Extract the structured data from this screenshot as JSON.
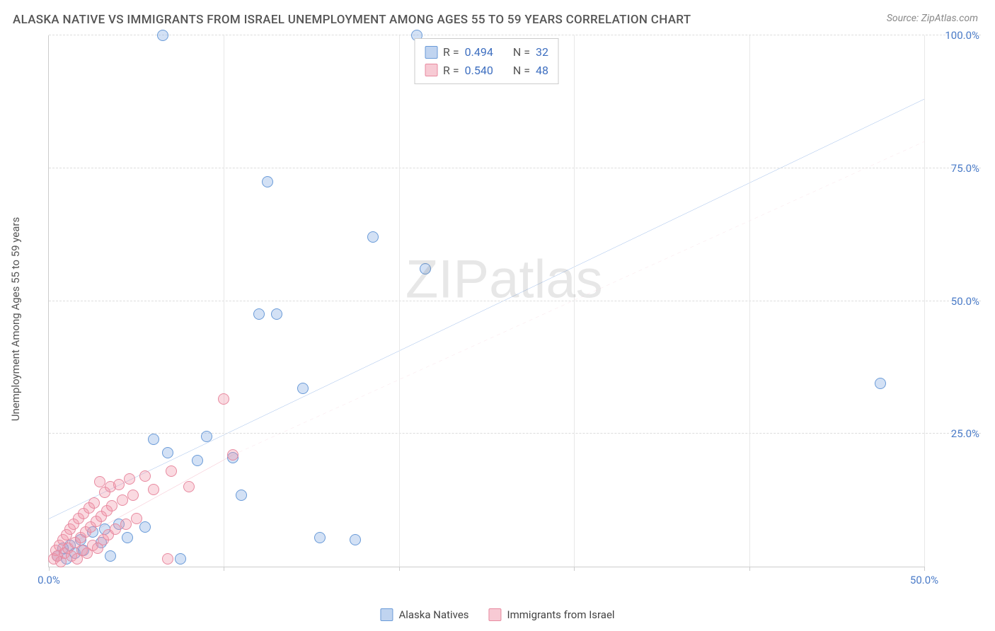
{
  "header": {
    "title": "ALASKA NATIVE VS IMMIGRANTS FROM ISRAEL UNEMPLOYMENT AMONG AGES 55 TO 59 YEARS CORRELATION CHART",
    "source": "Source: ZipAtlas.com"
  },
  "chart": {
    "type": "scatter",
    "y_axis_label": "Unemployment Among Ages 55 to 59 years",
    "xlim": [
      0,
      50
    ],
    "ylim": [
      0,
      100
    ],
    "x_ticks": [
      0,
      10,
      20,
      30,
      40,
      50
    ],
    "x_tick_labels": [
      "0.0%",
      "",
      "",
      "",
      "",
      "50.0%"
    ],
    "y_ticks": [
      25,
      50,
      75,
      100
    ],
    "y_tick_labels": [
      "25.0%",
      "50.0%",
      "75.0%",
      "100.0%"
    ],
    "background_color": "#ffffff",
    "grid_color": "#dddddd",
    "axis_color": "#cccccc",
    "tick_label_color": "#4a7bc8",
    "tick_label_fontsize": 15,
    "axis_label_fontsize": 15,
    "marker_radius": 8,
    "series": [
      {
        "name": "Alaska Natives",
        "color_fill": "rgba(130,170,225,0.35)",
        "color_stroke": "#6a9bd8",
        "R": 0.494,
        "N": 32,
        "trend": {
          "x1": 0,
          "y1": 9,
          "x2": 50,
          "y2": 88,
          "color": "#2e6fd1",
          "dash": "none",
          "width": 2
        },
        "points": [
          [
            0.5,
            2.0
          ],
          [
            0.8,
            3.5
          ],
          [
            1.0,
            1.5
          ],
          [
            1.2,
            4.0
          ],
          [
            1.5,
            2.5
          ],
          [
            1.8,
            5.0
          ],
          [
            2.0,
            3.0
          ],
          [
            2.5,
            6.5
          ],
          [
            3.0,
            4.5
          ],
          [
            3.2,
            7.0
          ],
          [
            3.5,
            2.0
          ],
          [
            4.0,
            8.0
          ],
          [
            4.5,
            5.5
          ],
          [
            5.5,
            7.5
          ],
          [
            6.0,
            24.0
          ],
          [
            6.5,
            100.0
          ],
          [
            6.8,
            21.5
          ],
          [
            7.5,
            1.5
          ],
          [
            8.5,
            20.0
          ],
          [
            9.0,
            24.5
          ],
          [
            10.5,
            20.5
          ],
          [
            11.0,
            13.5
          ],
          [
            12.0,
            47.5
          ],
          [
            12.5,
            72.5
          ],
          [
            13.0,
            47.5
          ],
          [
            14.5,
            33.5
          ],
          [
            15.5,
            5.5
          ],
          [
            17.5,
            5.0
          ],
          [
            18.5,
            62.0
          ],
          [
            21.0,
            100.0
          ],
          [
            21.5,
            56.0
          ],
          [
            47.5,
            34.5
          ]
        ]
      },
      {
        "name": "Immigrants from Israel",
        "color_fill": "rgba(240,150,170,0.35)",
        "color_stroke": "#e88aa0",
        "R": 0.54,
        "N": 48,
        "trend_solid": {
          "x1": 0,
          "y1": 2,
          "x2": 10.5,
          "y2": 21,
          "color": "#e86a8a",
          "dash": "none",
          "width": 2
        },
        "trend_dash": {
          "x1": 10.5,
          "y1": 21,
          "x2": 50,
          "y2": 80,
          "color": "#f0b0c0",
          "dash": "5,5",
          "width": 1.5
        },
        "points": [
          [
            0.3,
            1.5
          ],
          [
            0.4,
            3.0
          ],
          [
            0.5,
            2.0
          ],
          [
            0.6,
            4.0
          ],
          [
            0.7,
            1.0
          ],
          [
            0.8,
            5.0
          ],
          [
            0.9,
            2.5
          ],
          [
            1.0,
            6.0
          ],
          [
            1.1,
            3.5
          ],
          [
            1.2,
            7.0
          ],
          [
            1.3,
            2.0
          ],
          [
            1.4,
            8.0
          ],
          [
            1.5,
            4.5
          ],
          [
            1.6,
            1.5
          ],
          [
            1.7,
            9.0
          ],
          [
            1.8,
            5.5
          ],
          [
            1.9,
            3.0
          ],
          [
            2.0,
            10.0
          ],
          [
            2.1,
            6.5
          ],
          [
            2.2,
            2.5
          ],
          [
            2.3,
            11.0
          ],
          [
            2.4,
            7.5
          ],
          [
            2.5,
            4.0
          ],
          [
            2.6,
            12.0
          ],
          [
            2.7,
            8.5
          ],
          [
            2.8,
            3.5
          ],
          [
            2.9,
            16.0
          ],
          [
            3.0,
            9.5
          ],
          [
            3.1,
            5.0
          ],
          [
            3.2,
            14.0
          ],
          [
            3.3,
            10.5
          ],
          [
            3.4,
            6.0
          ],
          [
            3.5,
            15.0
          ],
          [
            3.6,
            11.5
          ],
          [
            3.8,
            7.0
          ],
          [
            4.0,
            15.5
          ],
          [
            4.2,
            12.5
          ],
          [
            4.4,
            8.0
          ],
          [
            4.6,
            16.5
          ],
          [
            4.8,
            13.5
          ],
          [
            5.0,
            9.0
          ],
          [
            5.5,
            17.0
          ],
          [
            6.0,
            14.5
          ],
          [
            6.8,
            1.5
          ],
          [
            7.0,
            18.0
          ],
          [
            8.0,
            15.0
          ],
          [
            10.0,
            31.5
          ],
          [
            10.5,
            21.0
          ]
        ]
      }
    ]
  },
  "legend_top": {
    "rows": [
      {
        "swatch_fill": "rgba(130,170,225,0.5)",
        "swatch_stroke": "#6a9bd8",
        "R": "0.494",
        "N": "32"
      },
      {
        "swatch_fill": "rgba(240,150,170,0.5)",
        "swatch_stroke": "#e88aa0",
        "R": "0.540",
        "N": "48"
      }
    ]
  },
  "legend_bottom": {
    "items": [
      {
        "swatch_fill": "rgba(130,170,225,0.5)",
        "swatch_stroke": "#6a9bd8",
        "label": "Alaska Natives"
      },
      {
        "swatch_fill": "rgba(240,150,170,0.5)",
        "swatch_stroke": "#e88aa0",
        "label": "Immigrants from Israel"
      }
    ]
  },
  "watermark": {
    "text_part1": "ZIP",
    "text_part2": "atlas"
  }
}
